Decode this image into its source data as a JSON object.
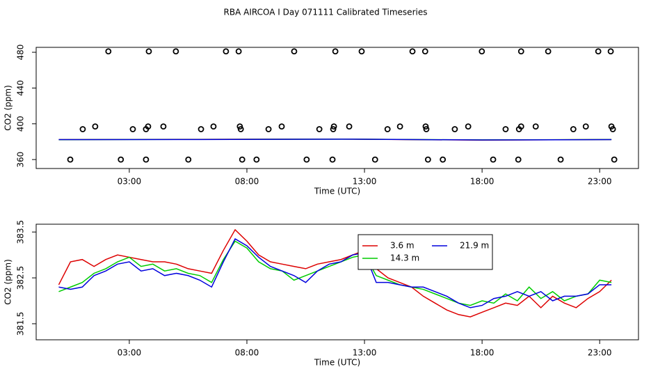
{
  "chart_data": [
    {
      "type": "scatter",
      "title": "RBA AIRCOA I  Day 071111  Calibrated Timeseries",
      "xlabel": "Time (UTC)",
      "ylabel": "CO2 (ppm)",
      "xlim": [
        -0.96,
        24.65
      ],
      "ylim": [
        350,
        485.5
      ],
      "xticks": [
        {
          "value": 3,
          "label": "03:00"
        },
        {
          "value": 8,
          "label": "08:00"
        },
        {
          "value": 13,
          "label": "13:00"
        },
        {
          "value": 18,
          "label": "18:00"
        },
        {
          "value": 23,
          "label": "23:00"
        }
      ],
      "yticks": [
        360,
        400,
        440,
        480
      ],
      "series": [
        {
          "type": "scatter",
          "color": "#000000",
          "x": [
            2.11,
            3.83,
            4.98,
            7.11,
            7.65,
            10.01,
            11.76,
            12.88,
            15.04,
            15.58,
            17.99,
            19.66,
            20.81,
            22.94,
            23.47,
            0.49,
            2.64,
            3.71,
            5.51,
            7.8,
            8.41,
            10.54,
            11.64,
            13.45,
            15.7,
            16.33,
            18.47,
            19.54,
            21.34,
            23.62,
            1.55,
            3.8,
            4.45,
            6.58,
            7.7,
            9.48,
            11.7,
            12.35,
            14.51,
            15.6,
            17.41,
            19.66,
            20.28,
            22.41,
            23.5,
            1.02,
            3.15,
            3.71,
            6.05,
            7.74,
            8.92,
            11.08,
            11.67,
            13.98,
            15.63,
            16.84,
            19.0,
            19.57,
            21.88,
            23.56
          ],
          "values": [
            481,
            481,
            481,
            481,
            481,
            481,
            481,
            481,
            481,
            481,
            481,
            481,
            481,
            481,
            481,
            360,
            360,
            360,
            360,
            360,
            360,
            360,
            360,
            360,
            360,
            360,
            360,
            360,
            360,
            360,
            397,
            397,
            397,
            397,
            397,
            397,
            397,
            397,
            397,
            397,
            397,
            397,
            397,
            397,
            397,
            394,
            394,
            394,
            394,
            394,
            394,
            394,
            394,
            394,
            394,
            394,
            394,
            394,
            394,
            394
          ]
        },
        {
          "type": "line",
          "color": "#dd0000",
          "x": [
            0,
            6,
            12,
            18,
            23.5
          ],
          "values": [
            382.35,
            382.65,
            382.9,
            381.75,
            382.45
          ]
        },
        {
          "type": "line",
          "color": "#00cc00",
          "x": [
            0,
            6,
            12,
            18,
            23.5
          ],
          "values": [
            382.2,
            382.55,
            382.85,
            382.0,
            382.4
          ]
        },
        {
          "type": "line",
          "color": "#0000dd",
          "x": [
            0,
            6,
            12,
            18,
            23.5
          ],
          "values": [
            382.3,
            382.45,
            382.85,
            381.9,
            382.35
          ]
        }
      ]
    },
    {
      "type": "line",
      "xlabel": "Time (UTC)",
      "ylabel": "CO2 (ppm)",
      "xlim": [
        -0.96,
        24.65
      ],
      "ylim": [
        381.15,
        383.67
      ],
      "xticks": [
        {
          "value": 3,
          "label": "03:00"
        },
        {
          "value": 8,
          "label": "08:00"
        },
        {
          "value": 13,
          "label": "13:00"
        },
        {
          "value": 18,
          "label": "18:00"
        },
        {
          "value": 23,
          "label": "23:00"
        }
      ],
      "yticks": [
        381.5,
        382.5,
        383.5
      ],
      "legend": "top",
      "legend_columns": 2,
      "x": [
        0,
        0.5,
        1,
        1.5,
        2,
        2.5,
        3,
        3.5,
        4,
        4.5,
        5,
        5.5,
        6,
        6.5,
        7,
        7.5,
        8,
        8.5,
        9,
        9.5,
        10,
        10.5,
        11,
        11.5,
        12,
        12.5,
        13,
        13.5,
        14,
        14.5,
        15,
        15.5,
        16,
        16.5,
        17,
        17.5,
        18,
        18.5,
        19,
        19.5,
        20,
        20.5,
        21,
        21.5,
        22,
        22.5,
        23,
        23.5
      ],
      "series": [
        {
          "name": "3.6 m",
          "color": "#dd0000",
          "values": [
            382.35,
            382.85,
            382.9,
            382.75,
            382.9,
            383.0,
            382.95,
            382.9,
            382.85,
            382.85,
            382.8,
            382.7,
            382.65,
            382.6,
            383.1,
            383.55,
            383.3,
            383.0,
            382.85,
            382.8,
            382.75,
            382.7,
            382.8,
            382.85,
            382.9,
            383.0,
            383.1,
            382.7,
            382.5,
            382.4,
            382.3,
            382.1,
            381.95,
            381.8,
            381.7,
            381.65,
            381.75,
            381.85,
            381.95,
            381.9,
            382.1,
            381.85,
            382.1,
            381.95,
            381.85,
            382.05,
            382.2,
            382.45
          ]
        },
        {
          "name": "14.3 m",
          "color": "#00cc00",
          "values": [
            382.2,
            382.3,
            382.4,
            382.6,
            382.7,
            382.85,
            382.95,
            382.75,
            382.8,
            382.65,
            382.7,
            382.6,
            382.55,
            382.4,
            382.9,
            383.3,
            383.15,
            382.85,
            382.7,
            382.65,
            382.45,
            382.55,
            382.65,
            382.75,
            382.85,
            382.95,
            383.0,
            382.55,
            382.45,
            382.35,
            382.3,
            382.25,
            382.15,
            382.05,
            381.95,
            381.9,
            382.0,
            381.95,
            382.15,
            382.0,
            382.3,
            382.05,
            382.2,
            382.0,
            382.1,
            382.15,
            382.45,
            382.4
          ]
        },
        {
          "name": "21.9 m",
          "color": "#0000dd",
          "values": [
            382.3,
            382.25,
            382.3,
            382.55,
            382.65,
            382.8,
            382.85,
            382.65,
            382.7,
            382.55,
            382.6,
            382.55,
            382.45,
            382.3,
            382.85,
            383.35,
            383.2,
            382.95,
            382.75,
            382.65,
            382.55,
            382.4,
            382.65,
            382.8,
            382.85,
            383.0,
            383.05,
            382.4,
            382.4,
            382.35,
            382.3,
            382.3,
            382.2,
            382.1,
            381.95,
            381.85,
            381.9,
            382.05,
            382.1,
            382.2,
            382.1,
            382.2,
            382.0,
            382.1,
            382.1,
            382.15,
            382.35,
            382.35
          ]
        }
      ]
    }
  ]
}
